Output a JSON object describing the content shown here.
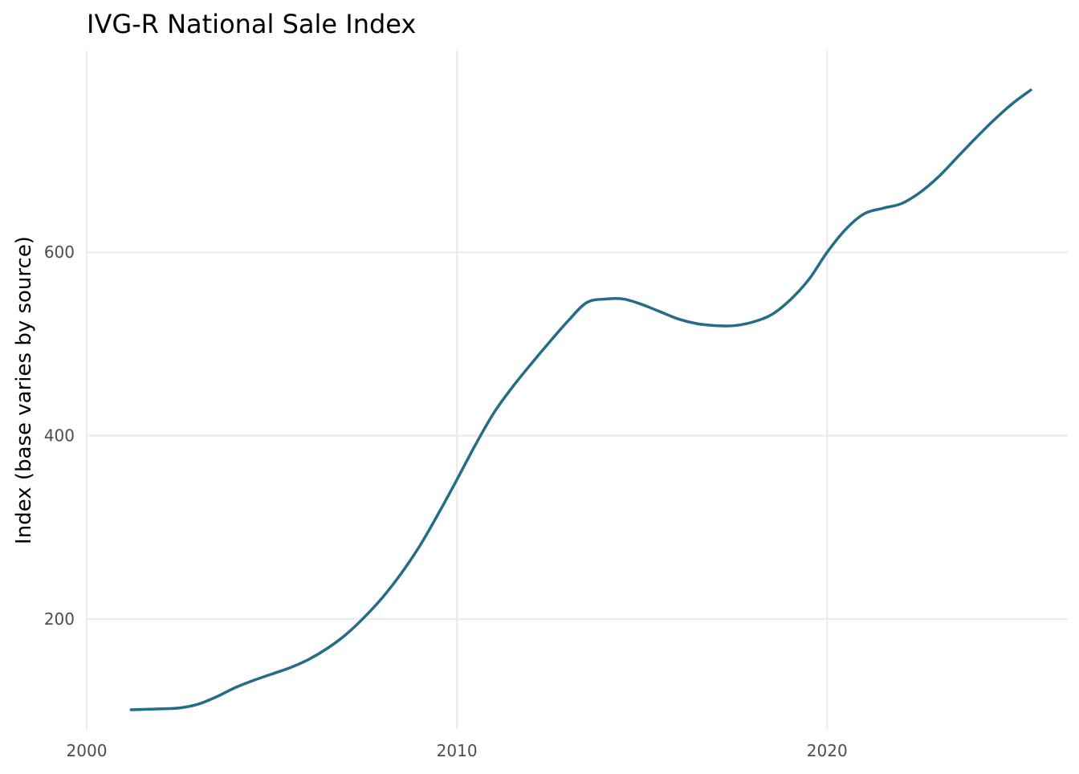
{
  "chart_data": {
    "type": "line",
    "title": "IVG-R National Sale Index",
    "xlabel": "",
    "ylabel": "Index (base varies by source)",
    "xlim": [
      2000,
      2026.5
    ],
    "ylim": [
      80,
      820
    ],
    "x_ticks": [
      2000,
      2010,
      2020
    ],
    "y_ticks": [
      200,
      400,
      600
    ],
    "grid": true,
    "legend": "none",
    "colors": {
      "line": "#236d87",
      "grid": "#ebebeb",
      "tick_text": "#4d4d4d",
      "title_text": "#000000"
    },
    "series": [
      {
        "x": [
          2001.2,
          2002.0,
          2002.5,
          2003.0,
          2003.5,
          2004.0,
          2004.5,
          2005.0,
          2005.5,
          2006.0,
          2006.5,
          2007.0,
          2007.5,
          2008.0,
          2008.5,
          2009.0,
          2009.5,
          2010.0,
          2010.5,
          2011.0,
          2011.5,
          2012.0,
          2012.5,
          2013.0,
          2013.5,
          2014.0,
          2014.5,
          2015.0,
          2015.5,
          2016.0,
          2016.5,
          2017.0,
          2017.5,
          2018.0,
          2018.5,
          2019.0,
          2019.5,
          2020.0,
          2020.5,
          2021.0,
          2021.5,
          2022.0,
          2022.5,
          2023.0,
          2023.5,
          2024.0,
          2024.5,
          2025.0,
          2025.5
        ],
        "y": [
          101,
          102,
          103,
          107,
          115,
          125,
          133,
          140,
          147,
          156,
          168,
          183,
          202,
          224,
          250,
          280,
          315,
          352,
          390,
          425,
          453,
          478,
          502,
          525,
          545,
          549,
          549,
          543,
          535,
          527,
          522,
          520,
          520,
          524,
          532,
          548,
          570,
          600,
          625,
          642,
          648,
          653,
          665,
          682,
          703,
          724,
          744,
          762,
          777
        ]
      }
    ]
  }
}
